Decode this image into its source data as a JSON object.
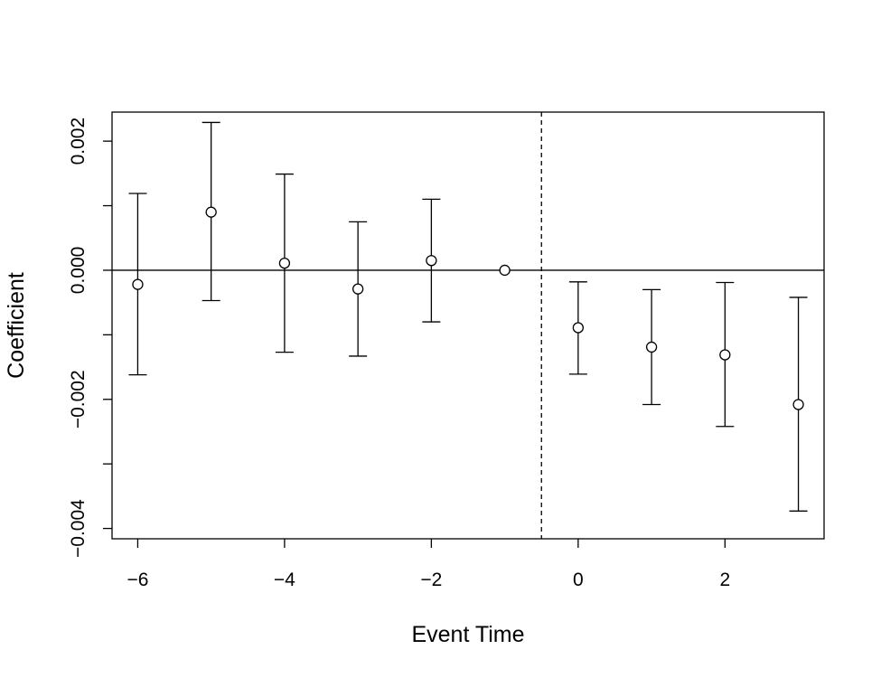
{
  "chart_data": {
    "type": "scatter",
    "title": "",
    "xlabel": "Event Time",
    "ylabel": "Coefficient",
    "xlim": [
      -6.35,
      3.35
    ],
    "ylim": [
      -0.00416,
      0.00245
    ],
    "x_ticks": [
      -6,
      -4,
      -2,
      0,
      2
    ],
    "x_tick_labels": [
      "−6",
      "−4",
      "−2",
      "0",
      "2"
    ],
    "y_ticks": [
      -0.004,
      -0.003,
      -0.002,
      -0.001,
      0,
      0.001,
      0.002
    ],
    "y_tick_labels": [
      "−0.004",
      "",
      "−0.002",
      "",
      "0.000",
      "",
      "0.002"
    ],
    "reference_hline": 0,
    "reference_vline": -0.5,
    "grid": false,
    "legend": "none",
    "points": [
      {
        "x": -6,
        "y": -0.00022,
        "lower": -0.00162,
        "upper": 0.00119
      },
      {
        "x": -5,
        "y": 0.0009,
        "lower": -0.00047,
        "upper": 0.00229
      },
      {
        "x": -4,
        "y": 0.00011,
        "lower": -0.00127,
        "upper": 0.00149
      },
      {
        "x": -3,
        "y": -0.00029,
        "lower": -0.00133,
        "upper": 0.00075
      },
      {
        "x": -2,
        "y": 0.00015,
        "lower": -0.0008,
        "upper": 0.0011
      },
      {
        "x": -1,
        "y": 0.0,
        "lower": null,
        "upper": null
      },
      {
        "x": 0,
        "y": -0.00089,
        "lower": -0.00161,
        "upper": -0.00018
      },
      {
        "x": 1,
        "y": -0.00119,
        "lower": -0.00208,
        "upper": -0.0003
      },
      {
        "x": 2,
        "y": -0.00131,
        "lower": -0.00242,
        "upper": -0.00019
      },
      {
        "x": 3,
        "y": -0.00208,
        "lower": -0.00373,
        "upper": -0.00042
      }
    ]
  }
}
